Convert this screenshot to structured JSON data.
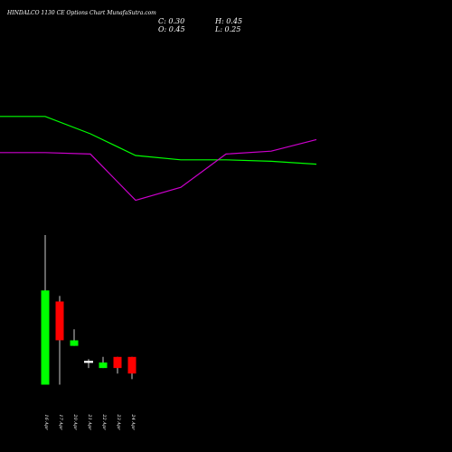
{
  "chart_data": {
    "type": "candlestick",
    "title": "HINDALCO 1130  CE Options  Chart MunafaSutra.com",
    "ohlc_labels": {
      "close": "C: 0.30",
      "high": "H: 0.45",
      "open": "O: 0.45",
      "low": "L: 0.25"
    },
    "categories": [
      "16 Apr",
      "17 Apr",
      "20 Apr",
      "21 Apr",
      "22 Apr",
      "23 Apr",
      "24 Apr"
    ],
    "candles": [
      {
        "open": 0.2,
        "high": 1.55,
        "low": 0.2,
        "close": 1.05,
        "direction": "up"
      },
      {
        "open": 0.95,
        "high": 1.0,
        "low": 0.2,
        "close": 0.6,
        "direction": "down"
      },
      {
        "open": 0.55,
        "high": 0.7,
        "low": 0.55,
        "close": 0.6,
        "direction": "up"
      },
      {
        "open": 0.41,
        "high": 0.43,
        "low": 0.35,
        "close": 0.4,
        "direction": "flat"
      },
      {
        "open": 0.35,
        "high": 0.45,
        "low": 0.35,
        "close": 0.4,
        "direction": "up"
      },
      {
        "open": 0.45,
        "high": 0.45,
        "low": 0.3,
        "close": 0.35,
        "direction": "down"
      },
      {
        "open": 0.45,
        "high": 0.45,
        "low": 0.25,
        "close": 0.3,
        "direction": "down"
      }
    ],
    "overlay_lines": [
      {
        "color": "#00ff00",
        "values": [
          82,
          82,
          70,
          55,
          52,
          52,
          51,
          49
        ]
      },
      {
        "color": "#cc00cc",
        "values": [
          57,
          57,
          56,
          24,
          33,
          56,
          58,
          66
        ]
      }
    ],
    "colors": {
      "up": "#00ff00",
      "down": "#ff0000",
      "flat": "#ffffff",
      "background": "#000000",
      "wick": "#ffffff"
    }
  }
}
